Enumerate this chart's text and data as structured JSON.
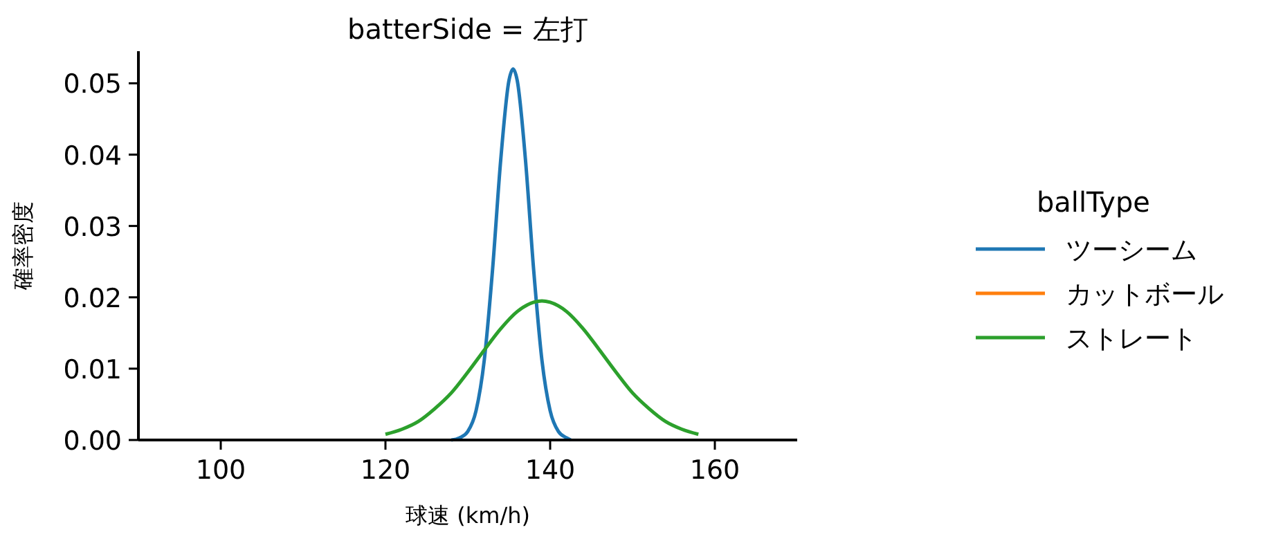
{
  "chart_data": {
    "type": "line",
    "title": "batterSide = 左打",
    "xlabel": "球速 (km/h)",
    "ylabel": "確率密度",
    "legend_title": "ballType",
    "legend": "right",
    "grid": false,
    "line_style": "solid",
    "xlim": [
      90,
      170
    ],
    "xticks": [
      100,
      120,
      140,
      160
    ],
    "ylim": [
      0,
      0.0545
    ],
    "yticks": [
      {
        "value": 0,
        "label": "0.00"
      },
      {
        "value": 0.01,
        "label": "0.01"
      },
      {
        "value": 0.02,
        "label": "0.02"
      },
      {
        "value": 0.03,
        "label": "0.03"
      },
      {
        "value": 0.04,
        "label": "0.04"
      },
      {
        "value": 0.05,
        "label": "0.05"
      }
    ],
    "series": [
      {
        "name": "ツーシーム",
        "color": "#1f77b4",
        "x": [
          128,
          129,
          130,
          131,
          132,
          133,
          134,
          135,
          135.5,
          136,
          137,
          138,
          139,
          140,
          141,
          142,
          142.5
        ],
        "values": [
          0,
          0.0003,
          0.0012,
          0.0041,
          0.0112,
          0.0238,
          0.0393,
          0.0504,
          0.052,
          0.0504,
          0.0393,
          0.0238,
          0.0112,
          0.0041,
          0.0012,
          0.0003,
          0
        ]
      },
      {
        "name": "カットボール",
        "color": "#ff7f0e"
      },
      {
        "name": "ストレート",
        "color": "#2ca02c",
        "x": [
          120,
          122,
          124,
          126,
          128,
          130,
          132,
          134,
          136,
          138,
          139,
          140,
          142,
          144,
          146,
          148,
          150,
          152,
          154,
          156,
          158
        ],
        "values": [
          0.0008,
          0.0015,
          0.0026,
          0.0044,
          0.0066,
          0.0095,
          0.0126,
          0.0156,
          0.018,
          0.0193,
          0.0195,
          0.0193,
          0.018,
          0.0156,
          0.0126,
          0.0095,
          0.0066,
          0.0044,
          0.0026,
          0.0015,
          0.0008
        ]
      }
    ]
  }
}
